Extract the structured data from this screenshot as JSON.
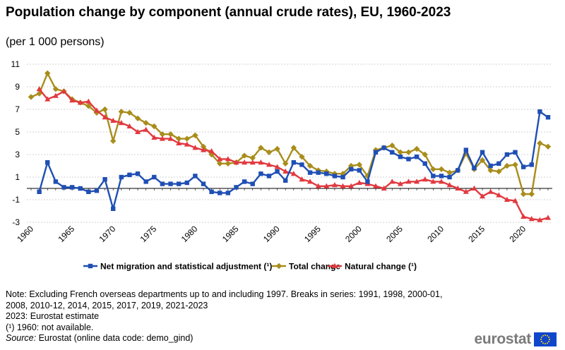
{
  "title": "Population change by component (annual crude rates), EU, 1960-2023",
  "subtitle": "(per 1 000 persons)",
  "chart_data": {
    "type": "line",
    "x": [
      1960,
      1961,
      1962,
      1963,
      1964,
      1965,
      1966,
      1967,
      1968,
      1969,
      1970,
      1971,
      1972,
      1973,
      1974,
      1975,
      1976,
      1977,
      1978,
      1979,
      1980,
      1981,
      1982,
      1983,
      1984,
      1985,
      1986,
      1987,
      1988,
      1989,
      1990,
      1991,
      1992,
      1993,
      1994,
      1995,
      1996,
      1997,
      1998,
      1999,
      2000,
      2001,
      2002,
      2003,
      2004,
      2005,
      2006,
      2007,
      2008,
      2009,
      2010,
      2011,
      2012,
      2013,
      2014,
      2015,
      2016,
      2017,
      2018,
      2019,
      2020,
      2021,
      2022,
      2023
    ],
    "x_tick_labels": [
      "1960",
      "1965",
      "1970",
      "1975",
      "1980",
      "1985",
      "1990",
      "1995",
      "2000",
      "2005",
      "2010",
      "2015",
      "2020"
    ],
    "y_tick_labels": [
      "11",
      "9",
      "7",
      "5",
      "3",
      "1",
      "-1",
      "-3"
    ],
    "ylim": [
      -3,
      11
    ],
    "grid": "horizontal",
    "legend_position": "bottom",
    "series": [
      {
        "name": "Net migration and statistical adjustment (¹)",
        "color": "#1f4fb4",
        "marker": "square",
        "values": [
          null,
          -0.3,
          2.3,
          0.6,
          0.1,
          0.1,
          0.0,
          -0.3,
          -0.2,
          0.8,
          -1.8,
          1.0,
          1.2,
          1.3,
          0.6,
          1.0,
          0.4,
          0.4,
          0.4,
          0.5,
          1.1,
          0.4,
          -0.3,
          -0.4,
          -0.4,
          0.1,
          0.6,
          0.4,
          1.3,
          1.1,
          1.5,
          0.7,
          2.3,
          2.1,
          1.4,
          1.4,
          1.3,
          1.1,
          1.0,
          1.7,
          1.6,
          0.6,
          3.2,
          3.6,
          3.2,
          2.8,
          2.6,
          2.8,
          2.2,
          1.1,
          1.1,
          1.0,
          1.6,
          3.4,
          1.8,
          3.2,
          2.0,
          2.2,
          3.0,
          3.2,
          1.9,
          2.1,
          6.8,
          6.3
        ]
      },
      {
        "name": "Total change",
        "color": "#a88d1b",
        "marker": "diamond",
        "values": [
          8.1,
          8.4,
          10.2,
          8.8,
          8.6,
          7.9,
          7.6,
          7.3,
          6.7,
          7.0,
          4.2,
          6.8,
          6.7,
          6.2,
          5.8,
          5.5,
          4.8,
          4.8,
          4.4,
          4.4,
          4.7,
          3.7,
          3.0,
          2.2,
          2.2,
          2.3,
          2.9,
          2.7,
          3.6,
          3.2,
          3.5,
          2.2,
          3.6,
          2.8,
          2.0,
          1.6,
          1.5,
          1.3,
          1.3,
          2.0,
          2.1,
          1.1,
          3.4,
          3.6,
          3.8,
          3.2,
          3.2,
          3.5,
          3.0,
          1.7,
          1.7,
          1.4,
          1.6,
          3.1,
          1.7,
          2.5,
          1.6,
          1.5,
          2.0,
          2.1,
          -0.5,
          -0.5,
          4.0,
          3.7
        ]
      },
      {
        "name": "Natural change (¹)",
        "color": "#e1393f",
        "marker": "triangle",
        "values": [
          null,
          8.8,
          7.9,
          8.2,
          8.6,
          7.8,
          7.6,
          7.7,
          6.9,
          6.3,
          6.0,
          5.8,
          5.5,
          5.0,
          5.2,
          4.5,
          4.4,
          4.4,
          4.0,
          3.9,
          3.6,
          3.4,
          3.3,
          2.6,
          2.6,
          2.3,
          2.3,
          2.3,
          2.3,
          2.1,
          1.9,
          1.5,
          1.3,
          0.8,
          0.6,
          0.2,
          0.2,
          0.3,
          0.2,
          0.2,
          0.5,
          0.4,
          0.2,
          0.0,
          0.6,
          0.4,
          0.6,
          0.6,
          0.8,
          0.6,
          0.6,
          0.3,
          0.0,
          -0.3,
          0.0,
          -0.7,
          -0.3,
          -0.6,
          -1.0,
          -1.1,
          -2.5,
          -2.7,
          -2.8,
          -2.6
        ]
      }
    ]
  },
  "notes": [
    "Note: Excluding French overseas departments up to and including 1997. Breaks in series: 1991, 1998, 2000-01,",
    "2008, 2010-12, 2014, 2015, 2017, 2019, 2021-2023",
    "2023: Eurostat estimate",
    "(¹) 1960: not available."
  ],
  "source": {
    "label": "Source:",
    "text": " Eurostat (online data code: demo_gind)"
  },
  "logo_text": "eurostat"
}
